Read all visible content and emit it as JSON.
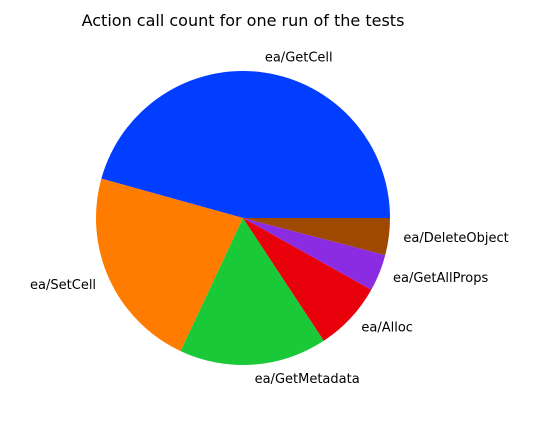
{
  "chart_data": {
    "type": "pie",
    "title": "Action call count for one run of the tests",
    "start_angle_deg": 0,
    "direction": "counterclockwise",
    "slices": [
      {
        "label": "ea/GetCell",
        "value": 45,
        "color": "#023eff"
      },
      {
        "label": "ea/SetCell",
        "value": 22,
        "color": "#ff7c00"
      },
      {
        "label": "ea/GetMetadata",
        "value": 16,
        "color": "#1ac938"
      },
      {
        "label": "ea/Alloc",
        "value": 7.5,
        "color": "#e8000b"
      },
      {
        "label": "ea/GetAllProps",
        "value": 4,
        "color": "#8b2be2"
      },
      {
        "label": "ea/DeleteObject",
        "value": 4,
        "color": "#9f4800"
      }
    ]
  }
}
